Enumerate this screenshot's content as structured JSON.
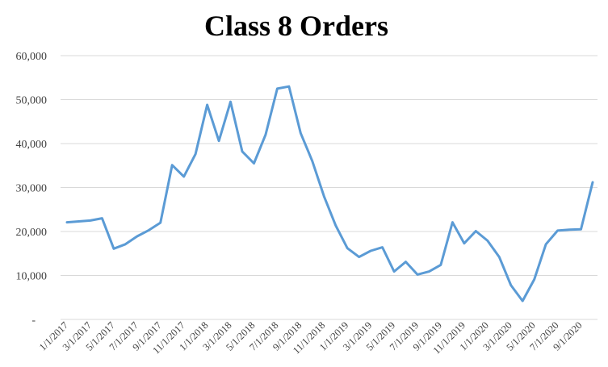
{
  "chart_data": {
    "type": "line",
    "title": "Class 8 Orders",
    "xlabel": "",
    "ylabel": "",
    "ylim": [
      0,
      60000
    ],
    "y_ticks": [
      {
        "value": 0,
        "label": "-"
      },
      {
        "value": 10000,
        "label": "10,000"
      },
      {
        "value": 20000,
        "label": "20,000"
      },
      {
        "value": 30000,
        "label": "30,000"
      },
      {
        "value": 40000,
        "label": "40,000"
      },
      {
        "value": 50000,
        "label": "50,000"
      },
      {
        "value": 60000,
        "label": "60,000"
      }
    ],
    "grid": true,
    "legend": "none",
    "color": "#5b9bd5",
    "x_tick_labels": [
      "1/1/2017",
      "3/1/2017",
      "5/1/2017",
      "7/1/2017",
      "9/1/2017",
      "11/1/2017",
      "1/1/2018",
      "3/1/2018",
      "5/1/2018",
      "7/1/2018",
      "9/1/2018",
      "11/1/2018",
      "1/1/2019",
      "3/1/2019",
      "5/1/2019",
      "7/1/2019",
      "9/1/2019",
      "11/1/2019",
      "1/1/2020",
      "3/1/2020",
      "5/1/2020",
      "7/1/2020",
      "9/1/2020"
    ],
    "x": [
      "2017-01",
      "2017-02",
      "2017-03",
      "2017-04",
      "2017-05",
      "2017-06",
      "2017-07",
      "2017-08",
      "2017-09",
      "2017-10",
      "2017-11",
      "2017-12",
      "2018-01",
      "2018-02",
      "2018-03",
      "2018-04",
      "2018-05",
      "2018-06",
      "2018-07",
      "2018-08",
      "2018-09",
      "2018-10",
      "2018-11",
      "2018-12",
      "2019-01",
      "2019-02",
      "2019-03",
      "2019-04",
      "2019-05",
      "2019-06",
      "2019-07",
      "2019-08",
      "2019-09",
      "2019-10",
      "2019-11",
      "2019-12",
      "2020-01",
      "2020-02",
      "2020-03",
      "2020-04",
      "2020-05",
      "2020-06",
      "2020-07",
      "2020-08",
      "2020-09",
      "2020-10"
    ],
    "series": [
      {
        "values": [
          22100,
          22300,
          22500,
          23000,
          16100,
          17100,
          18900,
          20300,
          22000,
          35100,
          32500,
          37600,
          48800,
          40600,
          49500,
          38200,
          35500,
          42000,
          52500,
          53000,
          42400,
          36000,
          28000,
          21400,
          16200,
          14200,
          15600,
          16400,
          10900,
          13100,
          10200,
          10900,
          12400,
          22100,
          17300,
          20100,
          17900,
          14200,
          7800,
          4200,
          9100,
          17100,
          20200,
          20400,
          20500,
          31200
        ]
      }
    ]
  }
}
